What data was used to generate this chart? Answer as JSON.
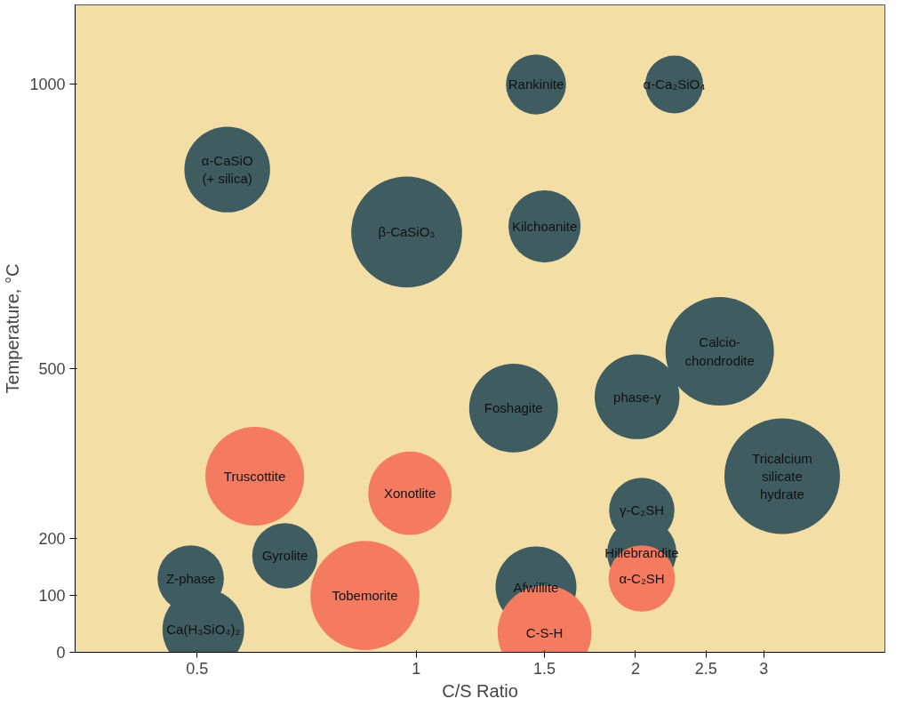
{
  "chart_data": {
    "type": "bubble",
    "xlabel": "C/S Ratio",
    "ylabel": "Temperature, °C",
    "log": "x",
    "xlim": [
      0.34,
      4.4
    ],
    "xticks": [
      0.5,
      1,
      1.5,
      2,
      2.5,
      3
    ],
    "ylim": [
      0,
      1140
    ],
    "yticks": [
      0,
      100,
      200,
      500,
      1000
    ],
    "grid": false,
    "series": [
      {
        "name": "α-CaSiO\n(+ silica)",
        "color": "#3f5c60",
        "x": [
          0.55
        ],
        "values": [
          850
        ],
        "sizes": [
          0.55
        ]
      },
      {
        "name": "β-CaSiO₃",
        "color": "#3f5c60",
        "x": [
          0.97
        ],
        "values": [
          740
        ],
        "sizes": [
          0.92
        ]
      },
      {
        "name": "Rankinite",
        "color": "#3f5c60",
        "x": [
          1.46
        ],
        "values": [
          1000
        ],
        "sizes": [
          0.27
        ]
      },
      {
        "name": "α-Ca₂SiO₄",
        "color": "#3f5c60",
        "x": [
          2.26
        ],
        "values": [
          1000
        ],
        "sizes": [
          0.25
        ]
      },
      {
        "name": "Kilchoanite",
        "color": "#3f5c60",
        "x": [
          1.5
        ],
        "values": [
          750
        ],
        "sizes": [
          0.39
        ]
      },
      {
        "name": "Calcio-\nchondrodite",
        "color": "#3f5c60",
        "x": [
          2.61
        ],
        "values": [
          530
        ],
        "sizes": [
          0.88
        ]
      },
      {
        "name": "phase-γ",
        "color": "#3f5c60",
        "x": [
          2.01
        ],
        "values": [
          450
        ],
        "sizes": [
          0.54
        ]
      },
      {
        "name": "Foshagite",
        "color": "#3f5c60",
        "x": [
          1.36
        ],
        "values": [
          430
        ],
        "sizes": [
          0.59
        ]
      },
      {
        "name": "Tricalcium\nsilicate\nhydrate",
        "color": "#3f5c60",
        "x": [
          3.18
        ],
        "values": [
          310
        ],
        "sizes": [
          1
        ]
      },
      {
        "name": "γ-C₂SH",
        "color": "#3f5c60",
        "x": [
          2.04
        ],
        "values": [
          250
        ],
        "sizes": [
          0.32
        ]
      },
      {
        "name": "Gyrolite",
        "color": "#3f5c60",
        "x": [
          0.66
        ],
        "values": [
          170
        ],
        "sizes": [
          0.32
        ]
      },
      {
        "name": "Hillebrandite",
        "color": "#3f5c60",
        "x": [
          2.04
        ],
        "values": [
          175
        ],
        "sizes": [
          0.36
        ]
      },
      {
        "name": "Z-phase",
        "color": "#3f5c60",
        "x": [
          0.49
        ],
        "values": [
          130
        ],
        "sizes": [
          0.33
        ]
      },
      {
        "name": "Afwillite",
        "color": "#3f5c60",
        "x": [
          1.46
        ],
        "values": [
          115
        ],
        "sizes": [
          0.49
        ]
      },
      {
        "name": "Ca(H₃SiO₄)₂",
        "color": "#3f5c60",
        "x": [
          0.51
        ],
        "values": [
          40
        ],
        "sizes": [
          0.5
        ]
      },
      {
        "name": "Truscottite",
        "color": "#f47a60",
        "x": [
          0.6
        ],
        "values": [
          310
        ],
        "sizes": [
          0.73
        ]
      },
      {
        "name": "Xonotlite",
        "color": "#f47a60",
        "x": [
          0.98
        ],
        "values": [
          280
        ],
        "sizes": [
          0.52
        ]
      },
      {
        "name": "Tobemorite",
        "color": "#f47a60",
        "x": [
          0.85
        ],
        "values": [
          100
        ],
        "sizes": [
          0.89
        ]
      },
      {
        "name": "α-C₂SH",
        "color": "#f47a60",
        "x": [
          2.04
        ],
        "values": [
          130
        ],
        "sizes": [
          0.33
        ]
      },
      {
        "name": "C-S-H",
        "color": "#f47a60",
        "x": [
          1.5
        ],
        "values": [
          35
        ],
        "sizes": [
          0.66
        ]
      }
    ]
  }
}
